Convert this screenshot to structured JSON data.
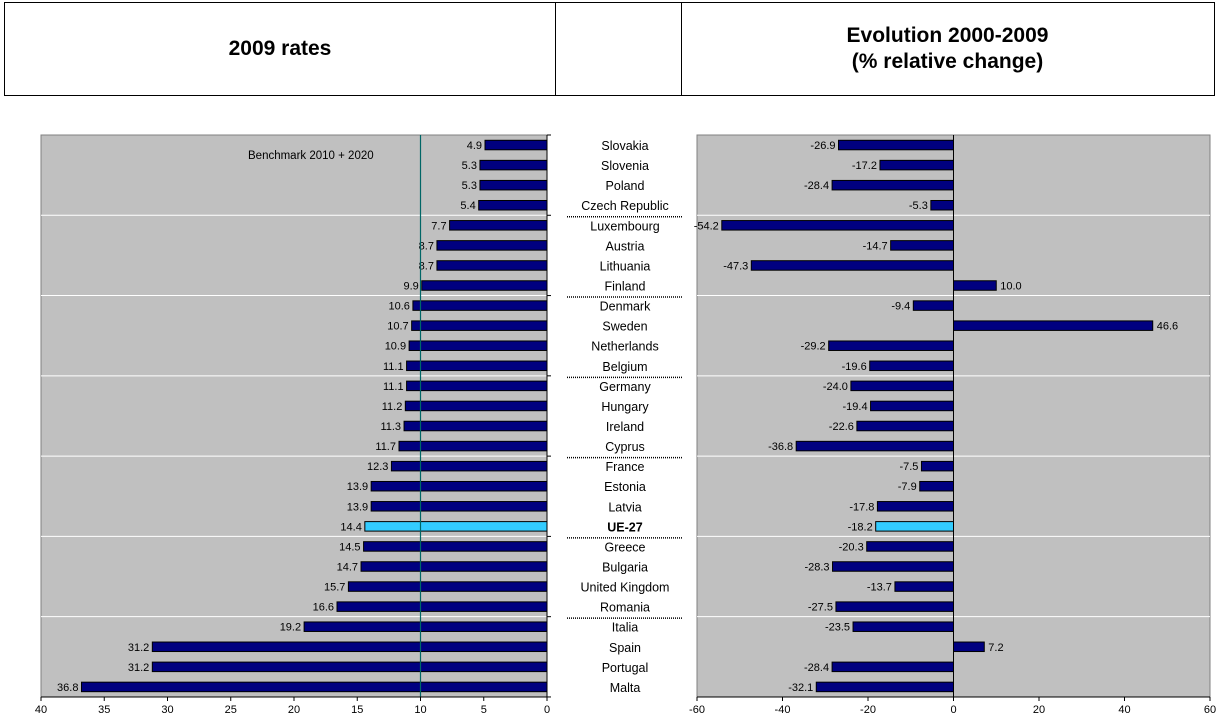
{
  "header": {
    "left_title": "2009 rates",
    "right_title_line1": "Evolution 2000-2009",
    "right_title_line2": "(% relative change)"
  },
  "colors": {
    "plot_bg": "#c0c0c0",
    "bar": "#000080",
    "bar_highlight": "#33ccff",
    "benchmark_line": "#006666",
    "grid": "#ffffff"
  },
  "chart_data": [
    {
      "type": "bar",
      "orientation": "horizontal",
      "panel": "left",
      "annotation": "Benchmark 2010 + 2020",
      "benchmark_value": 10,
      "xlim": [
        40,
        0
      ],
      "x_ticks": [
        40,
        35,
        30,
        25,
        20,
        15,
        10,
        5,
        0
      ],
      "categories": [
        "Slovakia",
        "Slovenia",
        "Poland",
        "Czech Republic",
        "Luxembourg",
        "Austria",
        "Lithuania",
        "Finland",
        "Denmark",
        "Sweden",
        "Netherlands",
        "Belgium",
        "Germany",
        "Hungary",
        "Ireland",
        "Cyprus",
        "France",
        "Estonia",
        "Latvia",
        "UE-27",
        "Greece",
        "Bulgaria",
        "United Kingdom",
        "Romania",
        "Italia",
        "Spain",
        "Portugal",
        "Malta"
      ],
      "values": [
        4.9,
        5.3,
        5.3,
        5.4,
        7.7,
        8.7,
        8.7,
        9.9,
        10.6,
        10.7,
        10.9,
        11.1,
        11.1,
        11.2,
        11.3,
        11.7,
        12.3,
        13.9,
        13.9,
        14.4,
        14.5,
        14.7,
        15.7,
        16.6,
        19.2,
        31.2,
        31.2,
        36.8
      ],
      "labels": [
        "4.9",
        "5.3",
        "5.3",
        "5.4",
        "7.7",
        "8.7",
        "8.7",
        "9.9",
        "10.6",
        "10.7",
        "10.9",
        "11.1",
        "11.1",
        "11.2",
        "11.3",
        "11.7",
        "12.3",
        "13.9",
        "13.9",
        "14.4",
        "14.5",
        "14.7",
        "15.7",
        "16.6",
        "19.2",
        "31.2",
        "31.2",
        "36.8"
      ],
      "highlight": "UE-27"
    },
    {
      "type": "bar",
      "orientation": "horizontal",
      "panel": "right",
      "xlim": [
        -60,
        60
      ],
      "x_ticks": [
        -60,
        -40,
        -20,
        0,
        20,
        40,
        60
      ],
      "categories": [
        "Slovakia",
        "Slovenia",
        "Poland",
        "Czech Republic",
        "Luxembourg",
        "Austria",
        "Lithuania",
        "Finland",
        "Denmark",
        "Sweden",
        "Netherlands",
        "Belgium",
        "Germany",
        "Hungary",
        "Ireland",
        "Cyprus",
        "France",
        "Estonia",
        "Latvia",
        "UE-27",
        "Greece",
        "Bulgaria",
        "United Kingdom",
        "Romania",
        "Italia",
        "Spain",
        "Portugal",
        "Malta"
      ],
      "values": [
        -26.9,
        -17.2,
        -28.4,
        -5.3,
        -54.2,
        -14.7,
        -47.3,
        10.0,
        -9.4,
        46.6,
        -29.2,
        -19.6,
        -24.0,
        -19.4,
        -22.6,
        -36.8,
        -7.5,
        -7.9,
        -17.8,
        -18.2,
        -20.3,
        -28.3,
        -13.7,
        -27.5,
        -23.5,
        7.2,
        -28.4,
        -32.1
      ],
      "labels": [
        "-26.9",
        "-17.2",
        "-28.4",
        "-5.3",
        "-54.2",
        "-14.7",
        "-47.3",
        "10.0",
        "-9.4",
        "46.6",
        "-29.2",
        "-19.6",
        "-24.0",
        "-19.4",
        "-22.6",
        "-36.8",
        "-7.5",
        "-7.9",
        "-17.8",
        "-18.2",
        "-20.3",
        "-28.3",
        "-13.7",
        "-27.5",
        "-23.5",
        "7.2",
        "-28.4",
        "-32.1"
      ],
      "highlight": "UE-27"
    }
  ]
}
